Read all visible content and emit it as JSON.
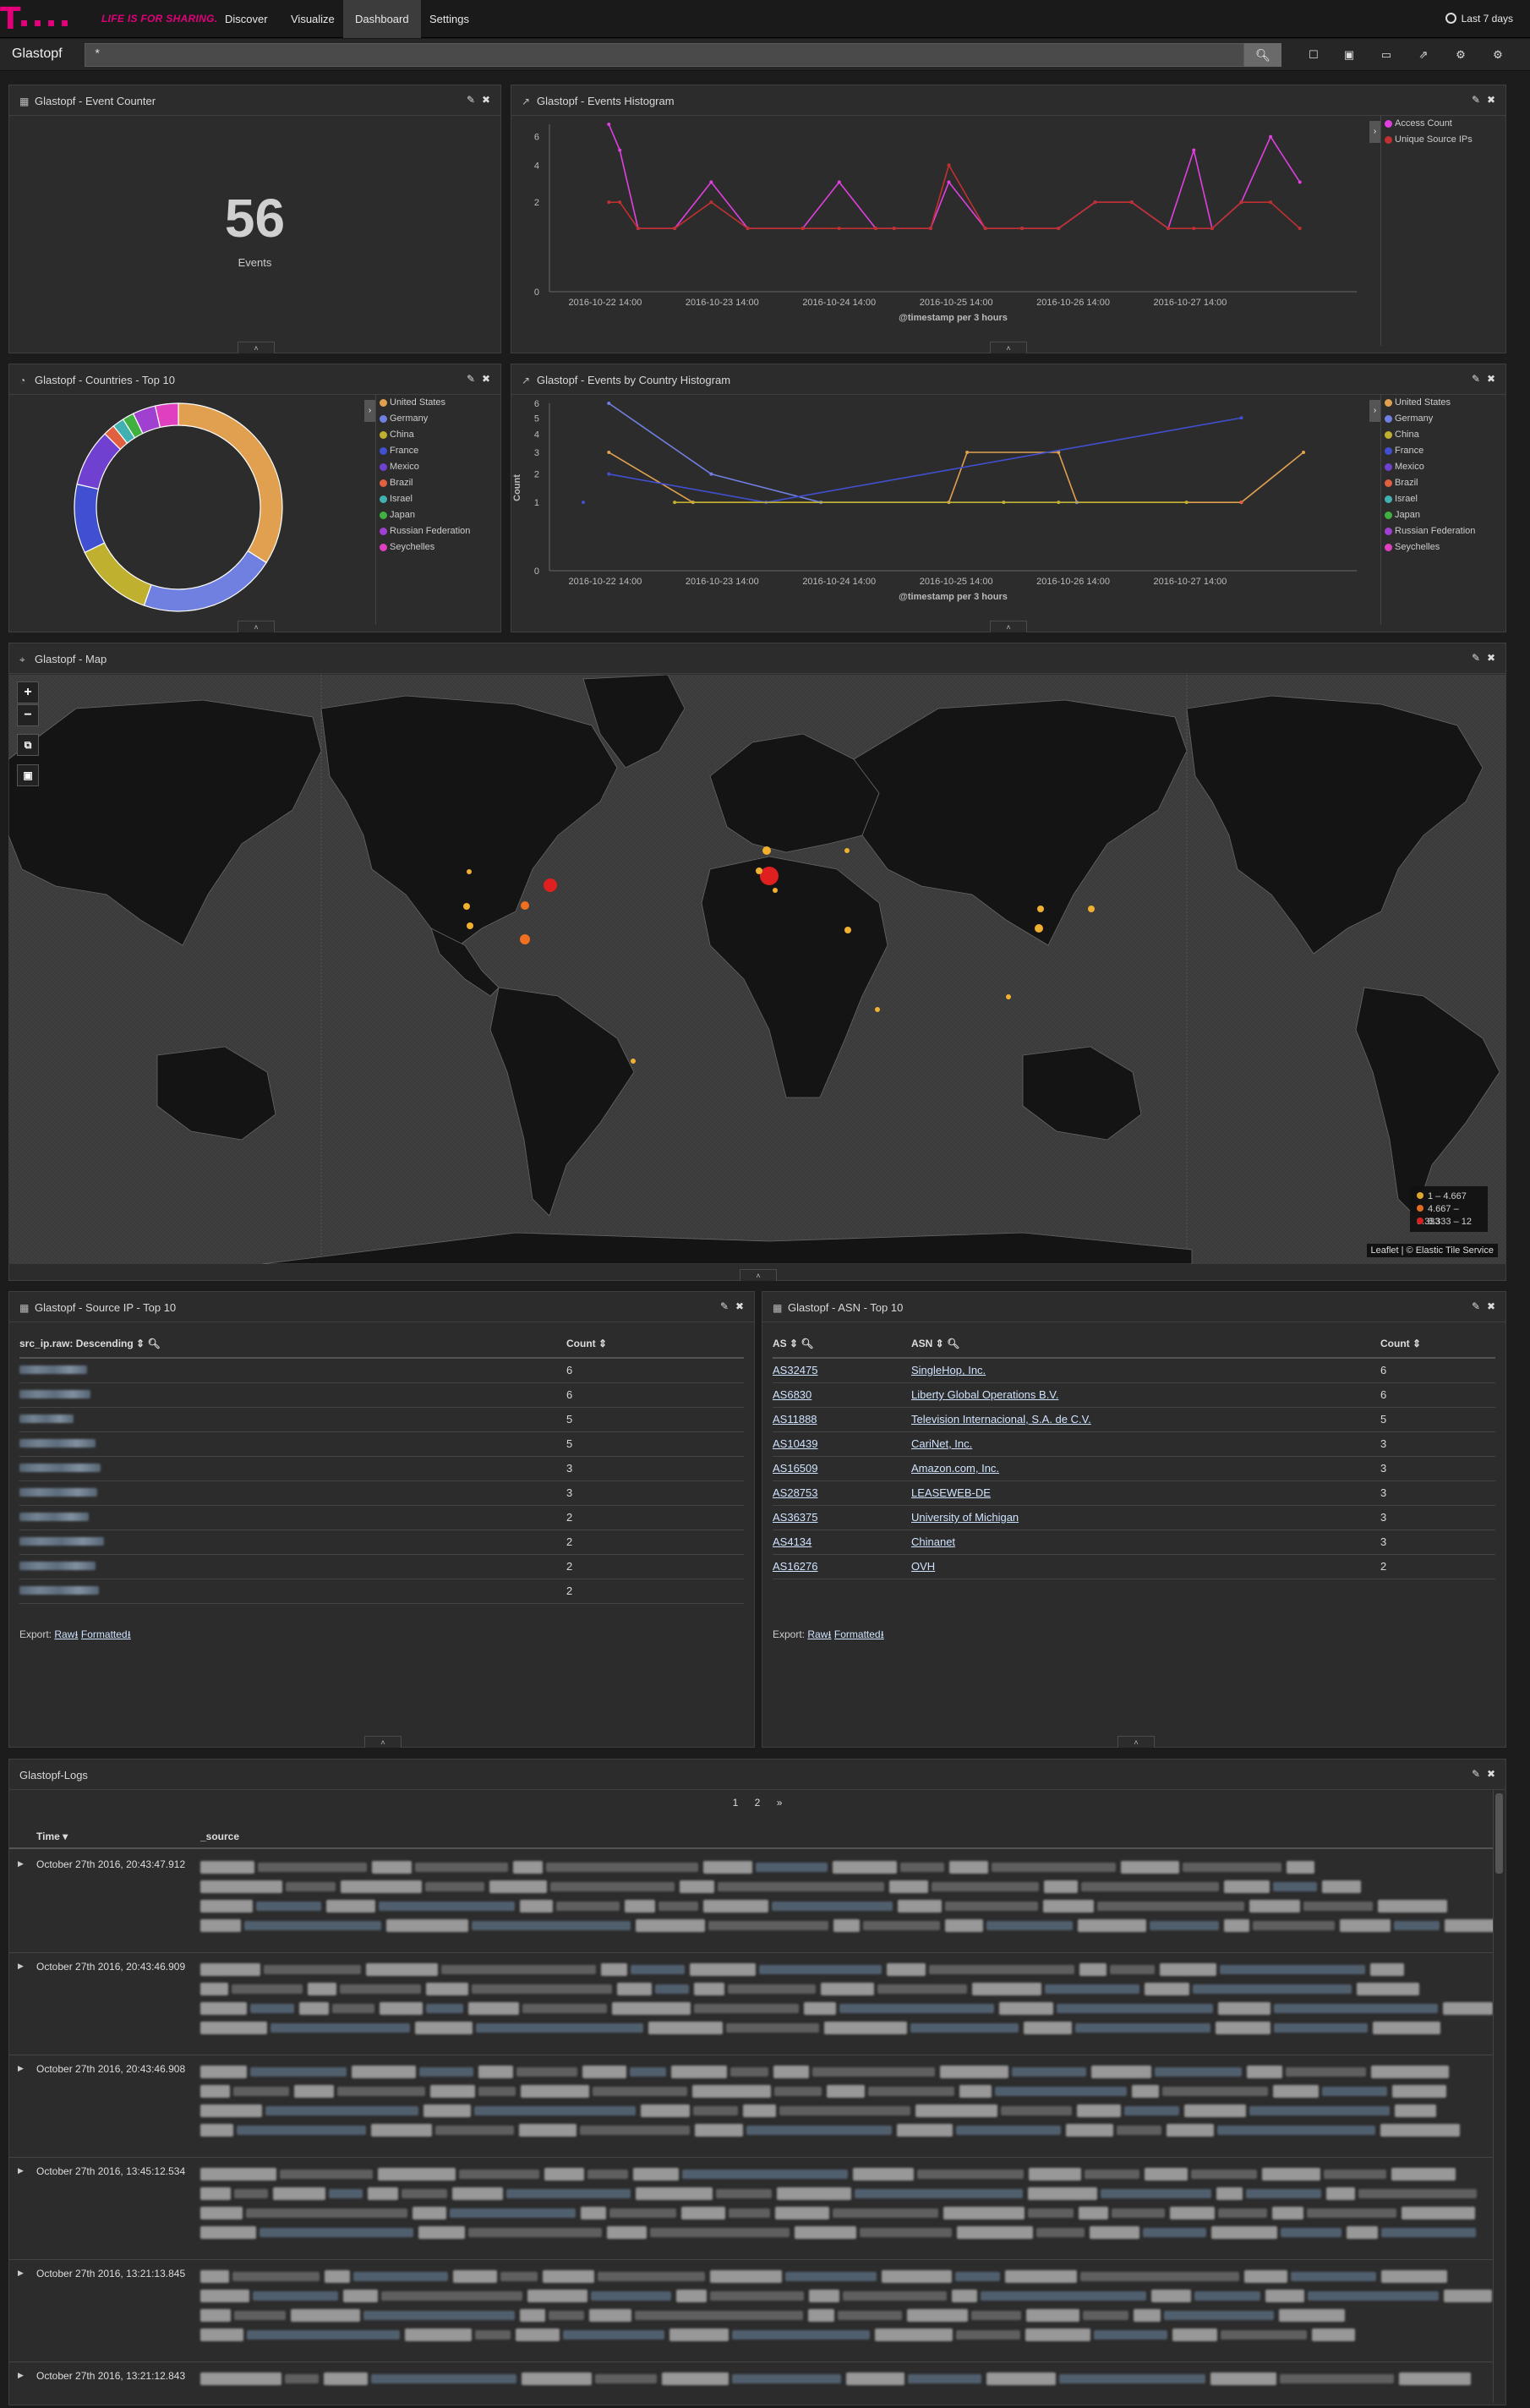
{
  "nav": {
    "slogan": "LIFE IS FOR SHARING.",
    "items": [
      {
        "label": "Discover",
        "active": false
      },
      {
        "label": "Visualize",
        "active": false
      },
      {
        "label": "Dashboard",
        "active": true
      },
      {
        "label": "Settings",
        "active": false
      }
    ],
    "timepicker": "Last 7 days"
  },
  "toolbar": {
    "dashboard_title": "Glastopf",
    "query": "*",
    "icons": [
      "new-dashboard-icon",
      "save-icon",
      "open-icon",
      "share-icon",
      "options-icon",
      "settings-icon"
    ]
  },
  "panels": {
    "event_counter": {
      "title": "Glastopf - Event Counter",
      "value": "56",
      "label": "Events"
    },
    "events_histogram": {
      "title": "Glastopf - Events Histogram",
      "xlabel": "@timestamp per 3 hours"
    },
    "countries": {
      "title": "Glastopf - Countries - Top 10"
    },
    "country_histogram": {
      "title": "Glastopf - Events by Country Histogram",
      "xlabel": "@timestamp per 3 hours",
      "ylabel": "Count"
    },
    "map": {
      "title": "Glastopf - Map",
      "attribution": "Leaflet | © Elastic Tile Service",
      "legend": [
        {
          "label": "1 – 4.667",
          "color": "#f0b030"
        },
        {
          "label": "4.667 – 8.333",
          "color": "#f07020"
        },
        {
          "label": "8.333 – 12",
          "color": "#e02020"
        }
      ]
    },
    "source_ip": {
      "title": "Glastopf - Source IP - Top 10",
      "col1": "src_ip.raw: Descending",
      "col2": "Count",
      "counts": [
        "6",
        "6",
        "5",
        "5",
        "3",
        "3",
        "2",
        "2",
        "2",
        "2"
      ],
      "export_label": "Export:",
      "raw": "Raw",
      "formatted": "Formatted"
    },
    "asn": {
      "title": "Glastopf - ASN - Top 10",
      "col1": "AS",
      "col2": "ASN",
      "col3": "Count",
      "rows": [
        {
          "as": "AS32475",
          "asn": "SingleHop, Inc.",
          "count": "6"
        },
        {
          "as": "AS6830",
          "asn": "Liberty Global Operations B.V.",
          "count": "6"
        },
        {
          "as": "AS11888",
          "asn": "Television Internacional, S.A. de C.V.",
          "count": "5"
        },
        {
          "as": "AS10439",
          "asn": "CariNet, Inc.",
          "count": "3"
        },
        {
          "as": "AS16509",
          "asn": "Amazon.com, Inc.",
          "count": "3"
        },
        {
          "as": "AS28753",
          "asn": "LEASEWEB-DE",
          "count": "3"
        },
        {
          "as": "AS36375",
          "asn": "University of Michigan",
          "count": "3"
        },
        {
          "as": "AS4134",
          "asn": "Chinanet",
          "count": "3"
        },
        {
          "as": "AS16276",
          "asn": "OVH",
          "count": "2"
        }
      ],
      "export_label": "Export:",
      "raw": "Raw",
      "formatted": "Formatted"
    },
    "logs": {
      "title": "Glastopf-Logs",
      "pages": [
        "1",
        "2",
        "»"
      ],
      "col_time": "Time",
      "col_source": "_source",
      "rows": [
        "October 27th 2016, 20:43:47.912",
        "October 27th 2016, 20:43:46.909",
        "October 27th 2016, 20:43:46.908",
        "October 27th 2016, 13:45:12.534",
        "October 27th 2016, 13:21:13.845",
        "October 27th 2016, 13:21:12.843"
      ]
    }
  },
  "chart_data": [
    {
      "type": "line",
      "categories": [
        "2016-10-22 14:00",
        "2016-10-23 14:00",
        "2016-10-24 14:00",
        "2016-10-25 14:00",
        "2016-10-26 14:00",
        "2016-10-27 14:00"
      ],
      "xlabel": "@timestamp per 3 hours",
      "ylabel": "",
      "y_ticks": [
        0,
        2,
        4,
        6
      ],
      "series": [
        {
          "name": "Access Count",
          "color": "#e040e0",
          "points": [
            [
              0.7,
              7
            ],
            [
              1.0,
              5
            ],
            [
              1.5,
              1
            ],
            [
              2.5,
              1
            ],
            [
              3.5,
              3
            ],
            [
              4.5,
              1
            ],
            [
              6.0,
              1
            ],
            [
              7.0,
              3
            ],
            [
              8.0,
              1
            ],
            [
              8.5,
              1
            ],
            [
              9.5,
              1
            ],
            [
              10.0,
              3
            ],
            [
              11.0,
              1
            ],
            [
              12.0,
              1
            ],
            [
              13.0,
              1
            ],
            [
              14.0,
              2
            ],
            [
              15.0,
              2
            ],
            [
              16.0,
              1
            ],
            [
              16.7,
              5
            ],
            [
              17.2,
              1
            ],
            [
              18.0,
              2
            ],
            [
              18.8,
              6
            ],
            [
              19.6,
              3
            ]
          ]
        },
        {
          "name": "Unique Source IPs",
          "color": "#c03030",
          "points": [
            [
              0.7,
              2
            ],
            [
              1.0,
              2
            ],
            [
              1.5,
              1
            ],
            [
              2.5,
              1
            ],
            [
              3.5,
              2
            ],
            [
              4.5,
              1
            ],
            [
              6.0,
              1
            ],
            [
              7.0,
              1
            ],
            [
              8.0,
              1
            ],
            [
              8.5,
              1
            ],
            [
              9.5,
              1
            ],
            [
              10.0,
              4
            ],
            [
              11.0,
              1
            ],
            [
              12.0,
              1
            ],
            [
              13.0,
              1
            ],
            [
              14.0,
              2
            ],
            [
              15.0,
              2
            ],
            [
              16.0,
              1
            ],
            [
              16.7,
              1
            ],
            [
              17.2,
              1
            ],
            [
              18.0,
              2
            ],
            [
              18.8,
              2
            ],
            [
              19.6,
              1
            ]
          ]
        }
      ]
    },
    {
      "type": "pie",
      "title": "",
      "slices": [
        {
          "label": "United States",
          "value": 19,
          "color": "#e0a050"
        },
        {
          "label": "Germany",
          "value": 12,
          "color": "#7080e0"
        },
        {
          "label": "China",
          "value": 7,
          "color": "#c0b030"
        },
        {
          "label": "France",
          "value": 6,
          "color": "#4050d0"
        },
        {
          "label": "Mexico",
          "value": 5,
          "color": "#7040d0"
        },
        {
          "label": "Brazil",
          "value": 1,
          "color": "#e06040"
        },
        {
          "label": "Israel",
          "value": 1,
          "color": "#40b0b0"
        },
        {
          "label": "Japan",
          "value": 1,
          "color": "#40b040"
        },
        {
          "label": "Russian Federation",
          "value": 2,
          "color": "#a040d0"
        },
        {
          "label": "Seychelles",
          "value": 2,
          "color": "#e040c0"
        }
      ]
    },
    {
      "type": "line",
      "categories": [
        "2016-10-22 14:00",
        "2016-10-23 14:00",
        "2016-10-24 14:00",
        "2016-10-25 14:00",
        "2016-10-26 14:00",
        "2016-10-27 14:00"
      ],
      "xlabel": "@timestamp per 3 hours",
      "ylabel": "Count",
      "y_ticks": [
        0,
        1,
        2,
        3,
        4,
        5,
        6
      ],
      "series": [
        {
          "name": "United States",
          "color": "#e0a050",
          "points": [
            [
              0.7,
              3
            ],
            [
              3.0,
              1
            ],
            [
              10.0,
              1
            ],
            [
              10.5,
              3
            ],
            [
              13.0,
              3
            ],
            [
              13.5,
              1
            ],
            [
              18.0,
              1
            ],
            [
              19.7,
              3
            ]
          ]
        },
        {
          "name": "Germany",
          "color": "#7080e0",
          "points": [
            [
              0.7,
              6
            ],
            [
              3.5,
              2
            ],
            [
              6.5,
              1
            ],
            [
              13.5,
              1
            ]
          ]
        },
        {
          "name": "France",
          "color": "#4050d0",
          "points": [
            [
              0.7,
              2
            ],
            [
              5.0,
              1
            ],
            [
              0.0,
              1
            ],
            [
              18.0,
              5
            ]
          ]
        },
        {
          "name": "China",
          "color": "#c0b030",
          "points": [
            [
              2.5,
              1
            ],
            [
              11.5,
              1
            ],
            [
              13.0,
              1
            ],
            [
              16.5,
              1
            ]
          ]
        },
        {
          "name": "Brazil",
          "color": "#e06040",
          "points": [
            [
              18.0,
              1
            ]
          ]
        }
      ]
    }
  ]
}
